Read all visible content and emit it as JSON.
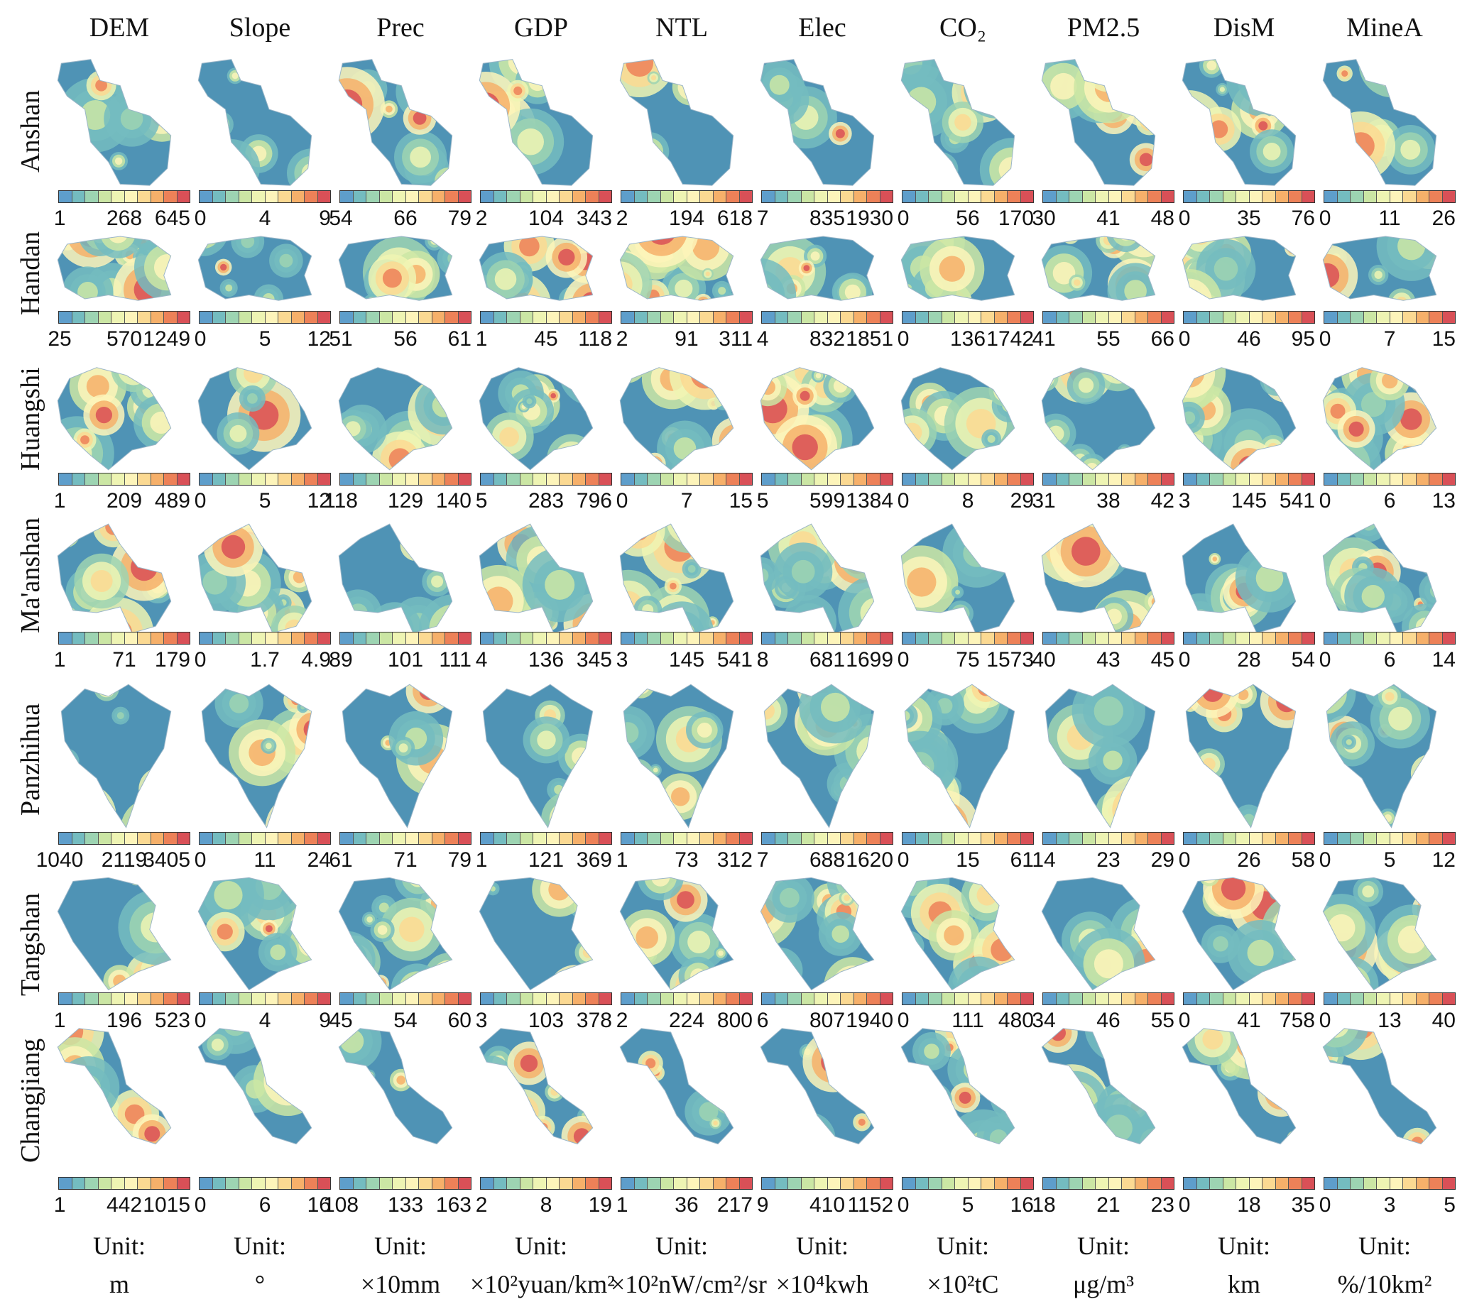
{
  "variables": [
    {
      "name": "DEM",
      "unit": "m"
    },
    {
      "name": "Slope",
      "unit": "°"
    },
    {
      "name": "Prec",
      "unit": "×10mm"
    },
    {
      "name": "GDP",
      "unit": "×10²yuan/km²"
    },
    {
      "name": "NTL",
      "unit": "×10²nW/cm²/sr"
    },
    {
      "name": "Elec",
      "unit": "×10⁴kwh"
    },
    {
      "name": "CO₂",
      "unit": "×10²tC"
    },
    {
      "name": "PM2.5",
      "unit": "μg/m³"
    },
    {
      "name": "DisM",
      "unit": "km"
    },
    {
      "name": "MineA",
      "unit": "%/10km²"
    }
  ],
  "unit_label": "Unit:",
  "cities": [
    {
      "name": "Anshan",
      "ticks": [
        [
          "1",
          "268",
          "645"
        ],
        [
          "0",
          "4",
          "9"
        ],
        [
          "54",
          "66",
          "79"
        ],
        [
          "2",
          "104",
          "343"
        ],
        [
          "2",
          "194",
          "618"
        ],
        [
          "7",
          "835",
          "1930"
        ],
        [
          "0",
          "56",
          "170"
        ],
        [
          "30",
          "41",
          "48"
        ],
        [
          "0",
          "35",
          "76"
        ],
        [
          "0",
          "11",
          "26"
        ]
      ]
    },
    {
      "name": "Handan",
      "ticks": [
        [
          "25",
          "570",
          "1249"
        ],
        [
          "0",
          "5",
          "12"
        ],
        [
          "51",
          "56",
          "61"
        ],
        [
          "1",
          "45",
          "118"
        ],
        [
          "2",
          "91",
          "311"
        ],
        [
          "4",
          "832",
          "1851"
        ],
        [
          "0",
          "136",
          "1742"
        ],
        [
          "41",
          "55",
          "66"
        ],
        [
          "0",
          "46",
          "95"
        ],
        [
          "0",
          "7",
          "15"
        ]
      ]
    },
    {
      "name": "Huangshi",
      "ticks": [
        [
          "1",
          "209",
          "489"
        ],
        [
          "0",
          "5",
          "12"
        ],
        [
          "118",
          "129",
          "140"
        ],
        [
          "5",
          "283",
          "796"
        ],
        [
          "0",
          "7",
          "15"
        ],
        [
          "5",
          "599",
          "1384"
        ],
        [
          "0",
          "8",
          "29"
        ],
        [
          "31",
          "38",
          "42"
        ],
        [
          "3",
          "145",
          "541"
        ],
        [
          "0",
          "6",
          "13"
        ]
      ]
    },
    {
      "name": "Ma'anshan",
      "ticks": [
        [
          "1",
          "71",
          "179"
        ],
        [
          "0",
          "1.7",
          "4.9"
        ],
        [
          "89",
          "101",
          "111"
        ],
        [
          "4",
          "136",
          "345"
        ],
        [
          "3",
          "145",
          "541"
        ],
        [
          "8",
          "681",
          "1699"
        ],
        [
          "0",
          "75",
          "1573"
        ],
        [
          "40",
          "43",
          "45"
        ],
        [
          "0",
          "28",
          "54"
        ],
        [
          "0",
          "6",
          "14"
        ]
      ]
    },
    {
      "name": "Panzhihua",
      "ticks": [
        [
          "1040",
          "2119",
          "3405"
        ],
        [
          "0",
          "11",
          "24"
        ],
        [
          "61",
          "71",
          "79"
        ],
        [
          "1",
          "121",
          "369"
        ],
        [
          "1",
          "73",
          "312"
        ],
        [
          "7",
          "688",
          "1620"
        ],
        [
          "0",
          "15",
          "61"
        ],
        [
          "14",
          "23",
          "29"
        ],
        [
          "0",
          "26",
          "58"
        ],
        [
          "0",
          "5",
          "12"
        ]
      ]
    },
    {
      "name": "Tangshan",
      "ticks": [
        [
          "1",
          "196",
          "523"
        ],
        [
          "0",
          "4",
          "9"
        ],
        [
          "45",
          "54",
          "60"
        ],
        [
          "3",
          "103",
          "378"
        ],
        [
          "2",
          "224",
          "800"
        ],
        [
          "6",
          "807",
          "1940"
        ],
        [
          "0",
          "111",
          "480"
        ],
        [
          "34",
          "46",
          "55"
        ],
        [
          "0",
          "41",
          "758"
        ],
        [
          "0",
          "13",
          "40"
        ]
      ]
    },
    {
      "name": "Changjiang",
      "ticks": [
        [
          "1",
          "442",
          "1015"
        ],
        [
          "0",
          "6",
          "16"
        ],
        [
          "108",
          "133",
          "163"
        ],
        [
          "2",
          "8",
          "19"
        ],
        [
          "1",
          "36",
          "217"
        ],
        [
          "9",
          "410",
          "1152"
        ],
        [
          "0",
          "5",
          "16"
        ],
        [
          "18",
          "21",
          "23"
        ],
        [
          "0",
          "18",
          "35"
        ],
        [
          "0",
          "3",
          "5"
        ]
      ]
    }
  ],
  "palette": [
    "#5e9ecb",
    "#74bcc0",
    "#9dd4b2",
    "#cbe6a4",
    "#eef4b3",
    "#fdf4ba",
    "#fbd992",
    "#f6b06a",
    "#ed8158",
    "#d95057"
  ],
  "base_map_color": "#4f93b5"
}
